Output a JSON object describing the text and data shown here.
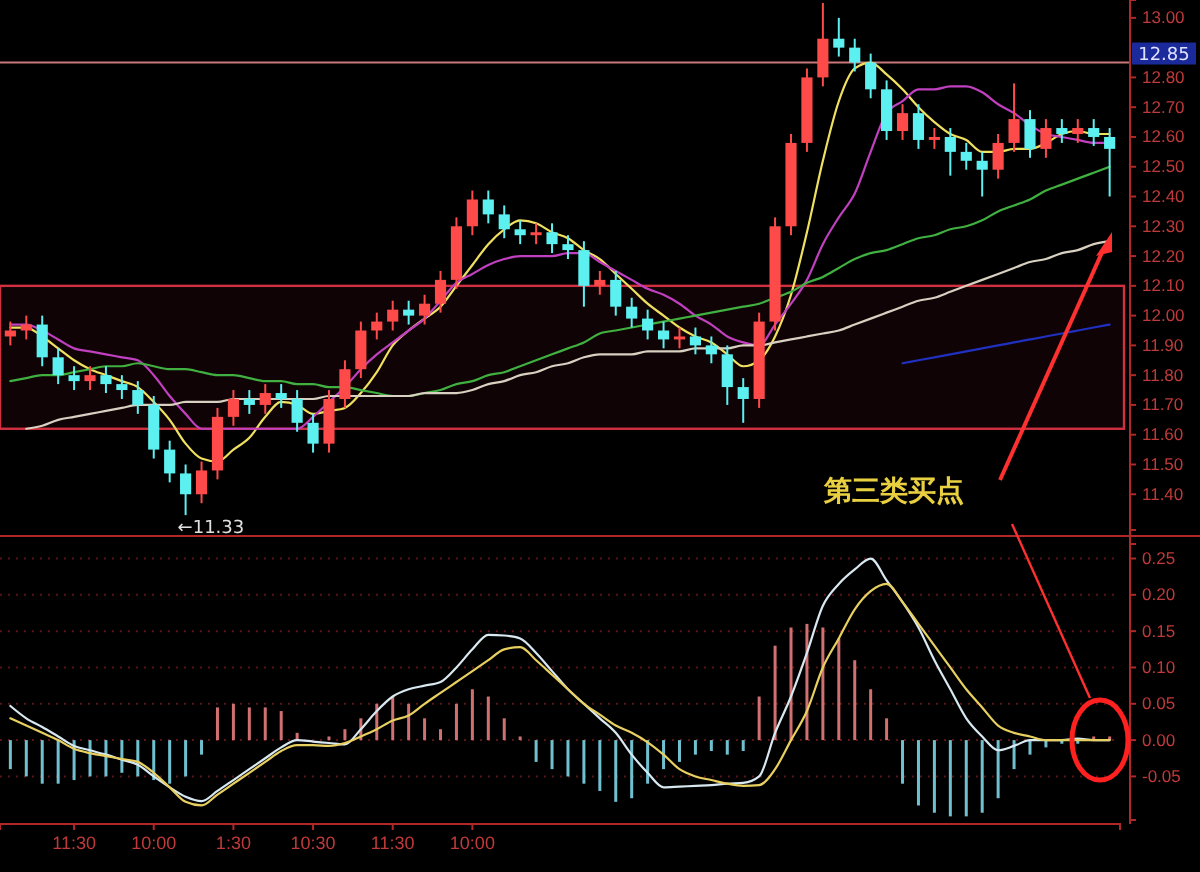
{
  "chart_data": [
    {
      "type": "candlestick",
      "tick_labels": "y",
      "categories": [
        null,
        null,
        null,
        null,
        null,
        null,
        null,
        null,
        null,
        null,
        null,
        null,
        null,
        null,
        null,
        null,
        null,
        null,
        null,
        null,
        null,
        null,
        null,
        null,
        null,
        null,
        null,
        null,
        null,
        null,
        null,
        null,
        null,
        null,
        null,
        null,
        null,
        null,
        null,
        null,
        null,
        null,
        null,
        null,
        null,
        null,
        null,
        null,
        null,
        null,
        null,
        null,
        null,
        null,
        null,
        null,
        null,
        null,
        null,
        null,
        null,
        null,
        null,
        null,
        null,
        null,
        null,
        null,
        null,
        null
      ],
      "ylim": [
        11.28,
        13.06
      ],
      "yticks": [
        {
          "value": 11.4,
          "label": "11.40"
        },
        {
          "value": 11.5,
          "label": "11.50"
        },
        {
          "value": 11.6,
          "label": "11.60"
        },
        {
          "value": 11.7,
          "label": "11.70"
        },
        {
          "value": 11.8,
          "label": "11.80"
        },
        {
          "value": 11.9,
          "label": "11.90"
        },
        {
          "value": 12,
          "label": "12.00"
        },
        {
          "value": 12.1,
          "label": "12.10"
        },
        {
          "value": 12.2,
          "label": "12.20"
        },
        {
          "value": 12.3,
          "label": "12.30"
        },
        {
          "value": 12.4,
          "label": "12.40"
        },
        {
          "value": 12.5,
          "label": "12.50"
        },
        {
          "value": 12.6,
          "label": "12.60"
        },
        {
          "value": 12.7,
          "label": "12.70"
        },
        {
          "value": 12.8,
          "label": "12.80"
        },
        {
          "value": 13,
          "label": "13.00"
        }
      ],
      "ohlc": [
        [
          11.93,
          11.98,
          11.9,
          11.95
        ],
        [
          11.95,
          12.0,
          11.92,
          11.97
        ],
        [
          11.97,
          12.0,
          11.83,
          11.86
        ],
        [
          11.86,
          11.89,
          11.77,
          11.8
        ],
        [
          11.8,
          11.83,
          11.75,
          11.78
        ],
        [
          11.78,
          11.83,
          11.75,
          11.8
        ],
        [
          11.8,
          11.83,
          11.74,
          11.77
        ],
        [
          11.77,
          11.8,
          11.72,
          11.75
        ],
        [
          11.75,
          11.78,
          11.67,
          11.7
        ],
        [
          11.7,
          11.73,
          11.52,
          11.55
        ],
        [
          11.55,
          11.58,
          11.44,
          11.47
        ],
        [
          11.47,
          11.5,
          11.33,
          11.4
        ],
        [
          11.4,
          11.51,
          11.37,
          11.48
        ],
        [
          11.48,
          11.69,
          11.45,
          11.66
        ],
        [
          11.66,
          11.75,
          11.63,
          11.72
        ],
        [
          11.72,
          11.75,
          11.67,
          11.7
        ],
        [
          11.7,
          11.77,
          11.67,
          11.74
        ],
        [
          11.74,
          11.77,
          11.69,
          11.72
        ],
        [
          11.72,
          11.75,
          11.61,
          11.64
        ],
        [
          11.64,
          11.67,
          11.54,
          11.57
        ],
        [
          11.57,
          11.75,
          11.54,
          11.72
        ],
        [
          11.72,
          11.85,
          11.69,
          11.82
        ],
        [
          11.82,
          11.98,
          11.79,
          11.95
        ],
        [
          11.95,
          12.01,
          11.92,
          11.98
        ],
        [
          11.98,
          12.05,
          11.95,
          12.02
        ],
        [
          12.02,
          12.05,
          11.97,
          12.0
        ],
        [
          12.0,
          12.07,
          11.97,
          12.04
        ],
        [
          12.04,
          12.15,
          12.01,
          12.12
        ],
        [
          12.12,
          12.33,
          12.09,
          12.3
        ],
        [
          12.3,
          12.42,
          12.27,
          12.39
        ],
        [
          12.39,
          12.42,
          12.31,
          12.34
        ],
        [
          12.34,
          12.37,
          12.26,
          12.29
        ],
        [
          12.29,
          12.32,
          12.24,
          12.27
        ],
        [
          12.27,
          12.31,
          12.24,
          12.28
        ],
        [
          12.28,
          12.31,
          12.21,
          12.24
        ],
        [
          12.24,
          12.27,
          12.19,
          12.22
        ],
        [
          12.22,
          12.25,
          12.03,
          12.1
        ],
        [
          12.1,
          12.15,
          12.07,
          12.12
        ],
        [
          12.12,
          12.15,
          12.0,
          12.03
        ],
        [
          12.03,
          12.06,
          11.96,
          11.99
        ],
        [
          11.99,
          12.02,
          11.92,
          11.95
        ],
        [
          11.95,
          11.98,
          11.89,
          11.92
        ],
        [
          11.92,
          11.96,
          11.89,
          11.93
        ],
        [
          11.93,
          11.96,
          11.87,
          11.9
        ],
        [
          11.9,
          11.93,
          11.84,
          11.87
        ],
        [
          11.87,
          11.9,
          11.7,
          11.76
        ],
        [
          11.76,
          11.79,
          11.64,
          11.72
        ],
        [
          11.72,
          12.01,
          11.69,
          11.98
        ],
        [
          11.98,
          12.33,
          11.95,
          12.3
        ],
        [
          12.3,
          12.61,
          12.27,
          12.58
        ],
        [
          12.58,
          12.83,
          12.55,
          12.8
        ],
        [
          12.8,
          13.05,
          12.77,
          12.93
        ],
        [
          12.93,
          13.0,
          12.87,
          12.9
        ],
        [
          12.9,
          12.93,
          12.82,
          12.85
        ],
        [
          12.85,
          12.88,
          12.73,
          12.76
        ],
        [
          12.76,
          12.79,
          12.59,
          12.62
        ],
        [
          12.62,
          12.71,
          12.59,
          12.68
        ],
        [
          12.68,
          12.71,
          12.56,
          12.59
        ],
        [
          12.59,
          12.63,
          12.56,
          12.6
        ],
        [
          12.6,
          12.63,
          12.47,
          12.55
        ],
        [
          12.55,
          12.58,
          12.49,
          12.52
        ],
        [
          12.52,
          12.55,
          12.4,
          12.49
        ],
        [
          12.49,
          12.61,
          12.46,
          12.58
        ],
        [
          12.58,
          12.78,
          12.55,
          12.66
        ],
        [
          12.66,
          12.69,
          12.53,
          12.56
        ],
        [
          12.56,
          12.66,
          12.53,
          12.63
        ],
        [
          12.63,
          12.66,
          12.58,
          12.61
        ],
        [
          12.61,
          12.66,
          12.58,
          12.63
        ],
        [
          12.63,
          12.66,
          12.57,
          12.6
        ],
        [
          12.6,
          12.63,
          12.4,
          12.56
        ]
      ],
      "series": [
        {
          "type": "line",
          "color": "#f0e060",
          "values": [
            11.96,
            11.96,
            11.93,
            11.89,
            11.85,
            11.82,
            11.8,
            11.78,
            11.76,
            11.71,
            11.65,
            11.57,
            11.52,
            11.51,
            11.55,
            11.59,
            11.66,
            11.71,
            11.7,
            11.67,
            11.68,
            11.69,
            11.74,
            11.81,
            11.9,
            11.95,
            11.99,
            12.03,
            12.1,
            12.17,
            12.24,
            12.29,
            12.32,
            12.31,
            12.28,
            12.26,
            12.22,
            12.19,
            12.14,
            12.09,
            12.04,
            12.0,
            11.96,
            11.93,
            11.91,
            11.87,
            11.83,
            11.85,
            11.93,
            12.07,
            12.28,
            12.52,
            12.72,
            12.83,
            12.85,
            12.81,
            12.76,
            12.7,
            12.65,
            12.61,
            12.59,
            12.55,
            12.55,
            12.56,
            12.56,
            12.58,
            12.61,
            12.62,
            12.61,
            12.61
          ]
        },
        {
          "type": "line",
          "color": "#c040c0",
          "values": [
            11.97,
            11.97,
            11.95,
            11.92,
            11.89,
            11.88,
            11.87,
            11.86,
            11.85,
            11.8,
            11.73,
            11.67,
            11.62,
            11.62,
            11.62,
            11.62,
            11.62,
            11.62,
            11.62,
            11.66,
            11.71,
            11.76,
            11.82,
            11.87,
            11.91,
            11.95,
            11.99,
            12.05,
            12.11,
            12.14,
            12.17,
            12.19,
            12.2,
            12.2,
            12.2,
            12.21,
            12.21,
            12.18,
            12.15,
            12.12,
            12.09,
            12.07,
            12.04,
            12.0,
            11.97,
            11.93,
            11.91,
            11.9,
            11.97,
            12.04,
            12.12,
            12.24,
            12.33,
            12.41,
            12.55,
            12.68,
            12.72,
            12.76,
            12.76,
            12.77,
            12.77,
            12.75,
            12.71,
            12.68,
            12.64,
            12.61,
            12.6,
            12.59,
            12.58,
            12.58
          ]
        },
        {
          "type": "line",
          "color": "#40b040",
          "values": [
            11.78,
            11.79,
            11.8,
            11.8,
            11.81,
            11.82,
            11.83,
            11.83,
            11.84,
            11.83,
            11.82,
            11.82,
            11.81,
            11.8,
            11.8,
            11.79,
            11.78,
            11.78,
            11.77,
            11.77,
            11.76,
            11.76,
            11.75,
            11.74,
            11.73,
            11.73,
            11.74,
            11.75,
            11.77,
            11.78,
            11.8,
            11.81,
            11.83,
            11.85,
            11.87,
            11.89,
            11.91,
            11.94,
            11.95,
            11.96,
            11.97,
            11.98,
            11.99,
            12.0,
            12.01,
            12.02,
            12.03,
            12.04,
            12.06,
            12.08,
            12.11,
            12.13,
            12.16,
            12.19,
            12.21,
            12.22,
            12.24,
            12.26,
            12.27,
            12.29,
            12.3,
            12.32,
            12.35,
            12.37,
            12.39,
            12.42,
            12.44,
            12.46,
            12.48,
            12.5
          ]
        },
        {
          "type": "line",
          "color": "#d8d0c0",
          "values": [
            null,
            11.62,
            11.63,
            11.65,
            11.66,
            11.67,
            11.68,
            11.69,
            11.7,
            11.7,
            11.7,
            11.71,
            11.71,
            11.71,
            11.72,
            11.72,
            11.72,
            11.72,
            11.72,
            11.72,
            11.73,
            11.73,
            11.73,
            11.73,
            11.73,
            11.73,
            11.74,
            11.74,
            11.74,
            11.75,
            11.77,
            11.78,
            11.8,
            11.81,
            11.83,
            11.84,
            11.86,
            11.87,
            11.87,
            11.87,
            11.88,
            11.88,
            11.88,
            11.89,
            11.89,
            11.89,
            11.9,
            11.9,
            11.91,
            11.92,
            11.93,
            11.94,
            11.95,
            11.97,
            11.99,
            12.01,
            12.03,
            12.05,
            12.06,
            12.08,
            12.1,
            12.12,
            12.14,
            12.16,
            12.18,
            12.19,
            12.21,
            12.22,
            12.24,
            12.25
          ]
        },
        {
          "type": "line",
          "color": "#2030c0",
          "values": [
            null,
            null,
            null,
            null,
            null,
            null,
            null,
            null,
            null,
            null,
            null,
            null,
            null,
            null,
            null,
            null,
            null,
            null,
            null,
            null,
            null,
            null,
            null,
            null,
            null,
            null,
            null,
            null,
            null,
            null,
            null,
            null,
            null,
            null,
            null,
            null,
            null,
            null,
            null,
            null,
            null,
            null,
            null,
            null,
            null,
            null,
            null,
            null,
            null,
            null,
            null,
            null,
            null,
            null,
            null,
            null,
            11.84,
            11.85,
            11.86,
            11.87,
            11.88,
            11.89,
            11.9,
            11.91,
            11.92,
            11.93,
            11.94,
            11.95,
            11.96,
            11.97
          ]
        }
      ],
      "ref_lines": [
        {
          "axis": "y",
          "value": 12.85,
          "label": "12.85",
          "color": "#c87878"
        }
      ],
      "bands": [
        {
          "axis": "y",
          "from": 11.62,
          "to": 12.1,
          "color": "#d03040"
        }
      ],
      "annotations": [
        "←11.33",
        "第三类买点"
      ]
    },
    {
      "type": "bar",
      "grid": "y",
      "categories": [
        null,
        null,
        null,
        null,
        "11:30",
        null,
        null,
        null,
        null,
        "10:00",
        null,
        null,
        null,
        null,
        "1:30",
        null,
        null,
        null,
        null,
        "10:30",
        null,
        null,
        null,
        null,
        "11:30",
        null,
        null,
        null,
        null,
        "10:00",
        null,
        null,
        null,
        null,
        null,
        null,
        null,
        null,
        null,
        null,
        null,
        null,
        null,
        null,
        null,
        null,
        null,
        null,
        null,
        null,
        null,
        null,
        null,
        null,
        null,
        null,
        null,
        null,
        null,
        null,
        null,
        null,
        null,
        null,
        null,
        null,
        null,
        null,
        null,
        null
      ],
      "ylim": [
        -0.11,
        0.27
      ],
      "yticks": [
        {
          "value": -0.05,
          "label": "-0.05"
        },
        {
          "value": 0,
          "label": "0.00"
        },
        {
          "value": 0.05,
          "label": "0.05"
        },
        {
          "value": 0.1,
          "label": "0.10"
        },
        {
          "value": 0.15,
          "label": "0.15"
        },
        {
          "value": 0.2,
          "label": "0.20"
        },
        {
          "value": 0.25,
          "label": "0.25"
        }
      ],
      "series": [
        {
          "type": "bar",
          "color": "#d07070",
          "values": [
            null,
            null,
            null,
            null,
            null,
            null,
            null,
            null,
            null,
            null,
            null,
            null,
            null,
            0.045,
            0.05,
            0.045,
            0.045,
            0.04,
            0.01,
            null,
            0.005,
            0.015,
            0.03,
            0.05,
            0.06,
            0.05,
            0.03,
            0.015,
            0.05,
            0.07,
            0.06,
            0.03,
            0.005,
            null,
            null,
            null,
            null,
            null,
            null,
            null,
            null,
            null,
            null,
            null,
            null,
            null,
            null,
            0.06,
            0.13,
            0.155,
            0.16,
            0.155,
            0.14,
            0.11,
            0.07,
            0.03,
            null,
            null,
            null,
            null,
            null,
            null,
            null,
            null,
            null,
            null,
            null,
            null,
            0.005,
            0.005
          ]
        },
        {
          "type": "bar",
          "color": "#70c0d0",
          "values": [
            -0.04,
            -0.05,
            -0.06,
            -0.06,
            -0.055,
            -0.05,
            -0.05,
            -0.045,
            -0.05,
            -0.055,
            -0.06,
            -0.05,
            -0.02,
            null,
            null,
            null,
            null,
            null,
            null,
            null,
            null,
            null,
            null,
            null,
            null,
            null,
            null,
            null,
            null,
            null,
            null,
            null,
            null,
            -0.03,
            -0.04,
            -0.05,
            -0.06,
            -0.07,
            -0.085,
            -0.08,
            -0.06,
            -0.04,
            -0.03,
            -0.02,
            -0.015,
            -0.02,
            -0.015,
            null,
            null,
            null,
            null,
            null,
            null,
            null,
            null,
            null,
            -0.06,
            -0.09,
            -0.1,
            -0.105,
            -0.105,
            -0.1,
            -0.08,
            -0.04,
            -0.02,
            -0.01,
            -0.005,
            -0.005,
            null,
            null
          ]
        },
        {
          "type": "line",
          "color": "#d8e8f0",
          "values": [
            0.047,
            0.03,
            0.018,
            0.005,
            -0.008,
            -0.014,
            -0.02,
            -0.027,
            -0.034,
            -0.05,
            -0.065,
            -0.078,
            -0.084,
            -0.07,
            -0.055,
            -0.04,
            -0.025,
            -0.01,
            0,
            -0.002,
            -0.004,
            -0.006,
            0.015,
            0.04,
            0.06,
            0.07,
            0.075,
            0.08,
            0.1,
            0.125,
            0.145,
            0.144,
            0.14,
            0.12,
            0.095,
            0.07,
            0.05,
            0.03,
            0.01,
            -0.02,
            -0.045,
            -0.065,
            -0.064,
            -0.063,
            -0.062,
            -0.06,
            -0.059,
            -0.05,
            0.01,
            0.06,
            0.12,
            0.185,
            0.215,
            0.235,
            0.25,
            0.22,
            0.19,
            0.155,
            0.11,
            0.07,
            0.03,
            0.005,
            -0.014,
            -0.008,
            0,
            0,
            0,
            0.002,
            0,
            0
          ]
        },
        {
          "type": "line",
          "color": "#e8d060",
          "values": [
            0.03,
            0.02,
            0.01,
            0,
            -0.012,
            -0.018,
            -0.022,
            -0.026,
            -0.03,
            -0.045,
            -0.065,
            -0.085,
            -0.09,
            -0.075,
            -0.06,
            -0.045,
            -0.03,
            -0.015,
            -0.007,
            -0.007,
            -0.008,
            -0.004,
            0.005,
            0.015,
            0.027,
            0.034,
            0.05,
            0.065,
            0.08,
            0.095,
            0.11,
            0.125,
            0.128,
            0.11,
            0.09,
            0.07,
            0.05,
            0.035,
            0.02,
            0.01,
            -0.003,
            -0.02,
            -0.04,
            -0.05,
            -0.055,
            -0.06,
            -0.063,
            -0.062,
            -0.04,
            0,
            0.04,
            0.1,
            0.14,
            0.18,
            0.205,
            0.215,
            0.19,
            0.16,
            0.13,
            0.1,
            0.07,
            0.045,
            0.02,
            0.01,
            0.005,
            0,
            0,
            0,
            0,
            0
          ]
        }
      ]
    }
  ]
}
